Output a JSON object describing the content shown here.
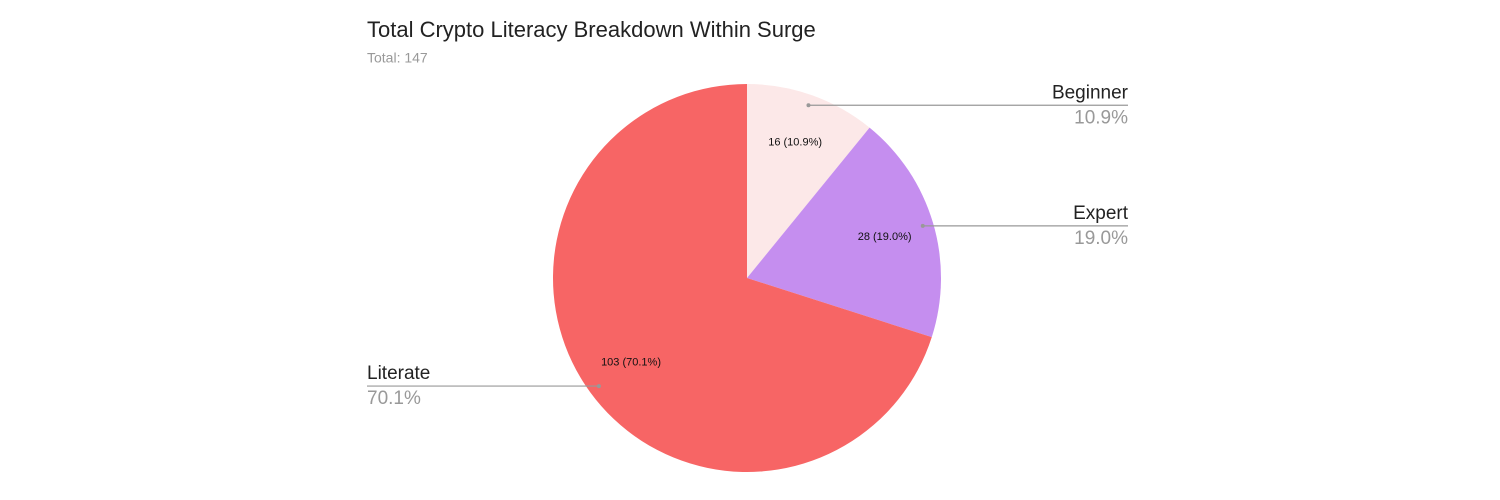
{
  "chart_data": {
    "type": "pie",
    "title": "Total Crypto Literacy Breakdown Within Surge",
    "subtitle": "Total: 147",
    "categories": [
      "Beginner",
      "Expert",
      "Literate"
    ],
    "values": [
      16,
      28,
      103
    ],
    "value_labels": [
      "16 (10.9%)",
      "28 (19.0%)",
      "103 (70.1%)"
    ],
    "percent_labels": [
      "10.9%",
      "19.0%",
      "70.1%"
    ],
    "colors": [
      "#fce8e8",
      "#c58eef",
      "#f76565"
    ]
  }
}
